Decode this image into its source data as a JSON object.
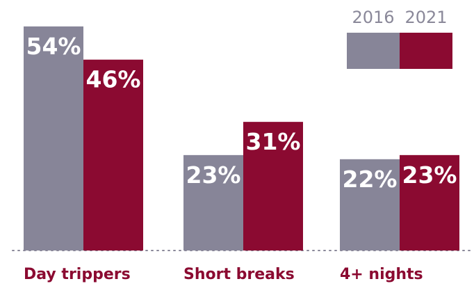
{
  "chart_data": {
    "type": "bar",
    "categories": [
      "Day trippers",
      "Short breaks",
      "4+ nights"
    ],
    "series": [
      {
        "name": "2016",
        "values": [
          54,
          23,
          22
        ],
        "labels": [
          "54%",
          "23%",
          "22%"
        ],
        "color": "#878598"
      },
      {
        "name": "2021",
        "values": [
          46,
          31,
          23
        ],
        "labels": [
          "46%",
          "31%",
          "23%"
        ],
        "color": "#8b0a31"
      }
    ],
    "ylim": [
      0,
      60
    ],
    "legend_position": "top-right",
    "grid": false,
    "baseline_style": "dotted"
  }
}
